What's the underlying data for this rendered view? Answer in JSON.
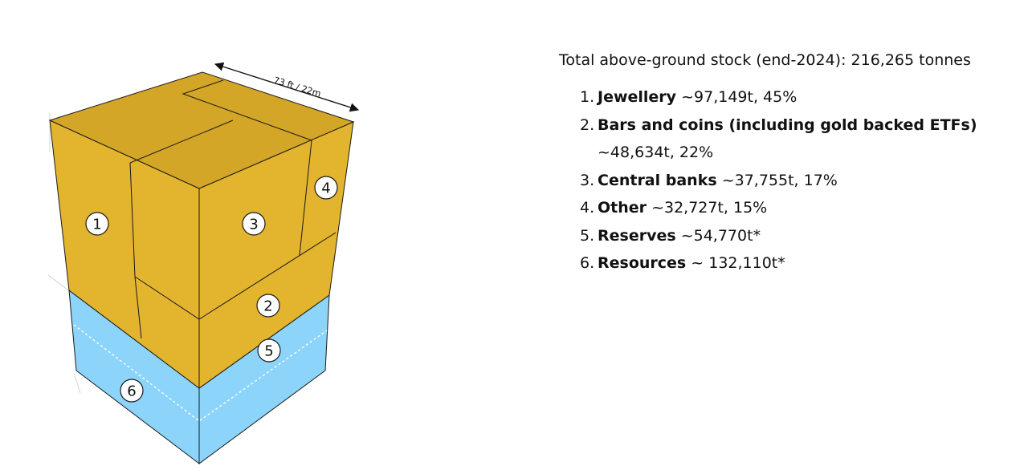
{
  "dimension_label": "73 ft / 22m",
  "total": "Total above-ground stock (end-2024): 216,265 tonnes",
  "items": [
    {
      "num": "1.",
      "name": "Jewellery",
      "value": " ~97,149t, 45%"
    },
    {
      "num": "2.",
      "name": "Bars and coins (including gold backed ETFs)",
      "value": " ~48,634t, 22%"
    },
    {
      "num": "3.",
      "name": "Central banks",
      "value": " ~37,755t, 17%"
    },
    {
      "num": "4.",
      "name": "Other",
      "value": " ~32,727t, 15%"
    },
    {
      "num": "5.",
      "name": "Reserves",
      "value": " ~54,770t*"
    },
    {
      "num": "6.",
      "name": "Resources",
      "value": " ~ 132,110t*"
    }
  ],
  "markers": [
    "1",
    "2",
    "3",
    "4",
    "5",
    "6"
  ],
  "colors": {
    "gold": "#E3B42E",
    "gold_top": "#D4A628",
    "blue": "#8DD4FA",
    "outline": "#1a1a1a"
  }
}
